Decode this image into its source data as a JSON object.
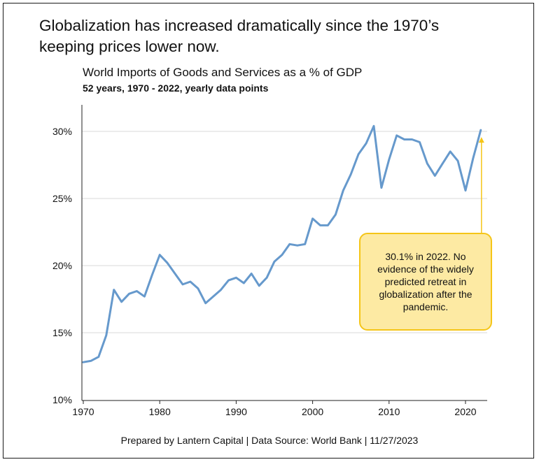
{
  "headline": {
    "line1": "Globalization has increased dramatically since the 1970’s",
    "line2": "keeping prices lower now."
  },
  "footer": "Prepared by Lantern Capital | Data Source: World Bank | 11/27/2023",
  "callout": {
    "text": "30.1% in 2022. No evidence of the widely predicted retreat in globalization after the pandemic.",
    "fill_color": "#fdeaa3",
    "border_color": "#f5c518"
  },
  "chart_data": {
    "type": "line",
    "title": "World Imports of Goods and Services as a % of GDP",
    "subtitle": "52 years, 1970 - 2022, yearly data points",
    "xlabel": "",
    "ylabel": "",
    "xlim": [
      1970,
      2023
    ],
    "ylim": [
      10,
      32
    ],
    "x_ticks": [
      1970,
      1980,
      1990,
      2000,
      2010,
      2020
    ],
    "y_ticks": [
      10,
      15,
      20,
      25,
      30
    ],
    "y_tick_labels": [
      "10%",
      "15%",
      "20%",
      "25%",
      "30%"
    ],
    "grid": "horizontal",
    "line_color": "#6699cc",
    "series": [
      {
        "x": [
          1970,
          1971,
          1972,
          1973,
          1974,
          1975,
          1976,
          1977,
          1978,
          1979,
          1980,
          1981,
          1982,
          1983,
          1984,
          1985,
          1986,
          1987,
          1988,
          1989,
          1990,
          1991,
          1992,
          1993,
          1994,
          1995,
          1996,
          1997,
          1998,
          1999,
          2000,
          2001,
          2002,
          2003,
          2004,
          2005,
          2006,
          2007,
          2008,
          2009,
          2010,
          2011,
          2012,
          2013,
          2014,
          2015,
          2016,
          2017,
          2018,
          2019,
          2020,
          2021,
          2022
        ],
        "values": [
          12.8,
          12.9,
          13.2,
          14.8,
          18.2,
          17.3,
          17.9,
          18.1,
          17.7,
          19.3,
          20.8,
          20.2,
          19.4,
          18.6,
          18.8,
          18.3,
          17.2,
          17.7,
          18.2,
          18.9,
          19.1,
          18.7,
          19.4,
          18.5,
          19.1,
          20.3,
          20.8,
          21.6,
          21.5,
          21.6,
          23.5,
          23.0,
          23.0,
          23.8,
          25.6,
          26.8,
          28.3,
          29.1,
          30.4,
          25.8,
          27.9,
          29.7,
          29.4,
          29.4,
          29.2,
          27.6,
          26.7,
          27.6,
          28.5,
          27.8,
          25.6,
          28.0,
          30.1
        ]
      }
    ],
    "annotation": {
      "text": "30.1% in 2022. No evidence of the widely predicted retreat in globalization after the pandemic.",
      "points_to": [
        2022,
        30.1
      ],
      "arrow_color": "#f5c518"
    }
  }
}
